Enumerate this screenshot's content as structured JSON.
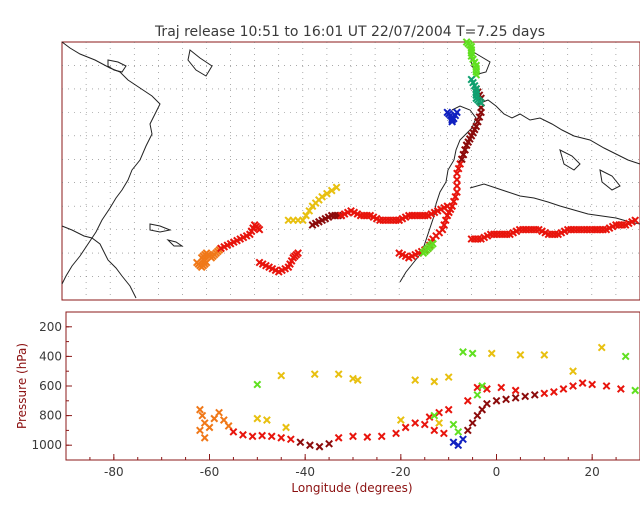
{
  "title": "Traj release 10:51 to 16:01 UT 22/07/2004     T=7.25 days",
  "chart_data": {
    "type": "scatter",
    "title": "Traj release 10:51 to 16:01 UT 22/07/2004     T=7.25 days",
    "map_panel": {
      "xlim": [
        -90,
        30
      ],
      "ylim": [
        15,
        70
      ],
      "grid": true,
      "coastlines": true
    },
    "profile_panel": {
      "xlabel": "Longitude  (degrees)",
      "ylabel": "Pressure  (hPa)",
      "xlim": [
        -90,
        30
      ],
      "ylim": [
        1100,
        100
      ],
      "xticks": [
        "-80",
        "-60",
        "-40",
        "-20",
        "0",
        "20"
      ],
      "yticks": [
        "200",
        "400",
        "600",
        "800",
        "1000"
      ],
      "grid": false
    },
    "series_colors": {
      "low_level_red": "#e8140c",
      "orange": "#f07818",
      "dark_red": "#8b0b0b",
      "yellow": "#e8c010",
      "green": "#60e020",
      "teal": "#10a070",
      "blue": "#1020c0"
    },
    "marker": "x",
    "profile_points": [
      {
        "lon": -62,
        "p": 760,
        "c": "orange"
      },
      {
        "lon": -61.5,
        "p": 800,
        "c": "orange"
      },
      {
        "lon": -61,
        "p": 850,
        "c": "orange"
      },
      {
        "lon": -62,
        "p": 900,
        "c": "orange"
      },
      {
        "lon": -61,
        "p": 950,
        "c": "orange"
      },
      {
        "lon": -60,
        "p": 880,
        "c": "orange"
      },
      {
        "lon": -59,
        "p": 820,
        "c": "orange"
      },
      {
        "lon": -58,
        "p": 780,
        "c": "orange"
      },
      {
        "lon": -57,
        "p": 830,
        "c": "orange"
      },
      {
        "lon": -56,
        "p": 870,
        "c": "orange"
      },
      {
        "lon": -55,
        "p": 910,
        "c": "low_level_red"
      },
      {
        "lon": -53,
        "p": 930,
        "c": "low_level_red"
      },
      {
        "lon": -51,
        "p": 940,
        "c": "low_level_red"
      },
      {
        "lon": -49,
        "p": 935,
        "c": "low_level_red"
      },
      {
        "lon": -47,
        "p": 940,
        "c": "low_level_red"
      },
      {
        "lon": -45,
        "p": 950,
        "c": "low_level_red"
      },
      {
        "lon": -43,
        "p": 960,
        "c": "low_level_red"
      },
      {
        "lon": -41,
        "p": 980,
        "c": "dark_red"
      },
      {
        "lon": -39,
        "p": 1000,
        "c": "dark_red"
      },
      {
        "lon": -37,
        "p": 1010,
        "c": "dark_red"
      },
      {
        "lon": -35,
        "p": 990,
        "c": "dark_red"
      },
      {
        "lon": -33,
        "p": 950,
        "c": "low_level_red"
      },
      {
        "lon": -30,
        "p": 940,
        "c": "low_level_red"
      },
      {
        "lon": -27,
        "p": 945,
        "c": "low_level_red"
      },
      {
        "lon": -24,
        "p": 940,
        "c": "low_level_red"
      },
      {
        "lon": -21,
        "p": 920,
        "c": "low_level_red"
      },
      {
        "lon": -19,
        "p": 880,
        "c": "low_level_red"
      },
      {
        "lon": -17,
        "p": 850,
        "c": "low_level_red"
      },
      {
        "lon": -15,
        "p": 860,
        "c": "low_level_red"
      },
      {
        "lon": -13,
        "p": 900,
        "c": "low_level_red"
      },
      {
        "lon": -11,
        "p": 920,
        "c": "low_level_red"
      },
      {
        "lon": -9,
        "p": 980,
        "c": "blue"
      },
      {
        "lon": -8,
        "p": 1000,
        "c": "blue"
      },
      {
        "lon": -7,
        "p": 960,
        "c": "blue"
      },
      {
        "lon": -6,
        "p": 900,
        "c": "dark_red"
      },
      {
        "lon": -5,
        "p": 850,
        "c": "dark_red"
      },
      {
        "lon": -4,
        "p": 800,
        "c": "dark_red"
      },
      {
        "lon": -3,
        "p": 760,
        "c": "dark_red"
      },
      {
        "lon": -2,
        "p": 720,
        "c": "dark_red"
      },
      {
        "lon": 0,
        "p": 700,
        "c": "dark_red"
      },
      {
        "lon": 2,
        "p": 690,
        "c": "dark_red"
      },
      {
        "lon": 4,
        "p": 680,
        "c": "dark_red"
      },
      {
        "lon": 6,
        "p": 670,
        "c": "dark_red"
      },
      {
        "lon": 8,
        "p": 660,
        "c": "dark_red"
      },
      {
        "lon": 10,
        "p": 650,
        "c": "low_level_red"
      },
      {
        "lon": 12,
        "p": 640,
        "c": "low_level_red"
      },
      {
        "lon": 14,
        "p": 620,
        "c": "low_level_red"
      },
      {
        "lon": 16,
        "p": 600,
        "c": "low_level_red"
      },
      {
        "lon": 18,
        "p": 580,
        "c": "low_level_red"
      },
      {
        "lon": 20,
        "p": 590,
        "c": "low_level_red"
      },
      {
        "lon": 23,
        "p": 600,
        "c": "low_level_red"
      },
      {
        "lon": 26,
        "p": 620,
        "c": "low_level_red"
      },
      {
        "lon": -4,
        "p": 610,
        "c": "low_level_red"
      },
      {
        "lon": -2,
        "p": 620,
        "c": "low_level_red"
      },
      {
        "lon": 1,
        "p": 610,
        "c": "low_level_red"
      },
      {
        "lon": 4,
        "p": 630,
        "c": "low_level_red"
      },
      {
        "lon": -6,
        "p": 700,
        "c": "low_level_red"
      },
      {
        "lon": -10,
        "p": 760,
        "c": "low_level_red"
      },
      {
        "lon": -12,
        "p": 780,
        "c": "low_level_red"
      },
      {
        "lon": -14,
        "p": 810,
        "c": "low_level_red"
      },
      {
        "lon": -50,
        "p": 820,
        "c": "yellow"
      },
      {
        "lon": -48,
        "p": 830,
        "c": "yellow"
      },
      {
        "lon": -44,
        "p": 880,
        "c": "yellow"
      },
      {
        "lon": -50,
        "p": 590,
        "c": "green"
      },
      {
        "lon": -45,
        "p": 530,
        "c": "yellow"
      },
      {
        "lon": -38,
        "p": 520,
        "c": "yellow"
      },
      {
        "lon": -33,
        "p": 520,
        "c": "yellow"
      },
      {
        "lon": -30,
        "p": 550,
        "c": "yellow"
      },
      {
        "lon": -29,
        "p": 560,
        "c": "yellow"
      },
      {
        "lon": -17,
        "p": 560,
        "c": "yellow"
      },
      {
        "lon": -13,
        "p": 570,
        "c": "yellow"
      },
      {
        "lon": -10,
        "p": 540,
        "c": "yellow"
      },
      {
        "lon": -7,
        "p": 370,
        "c": "green"
      },
      {
        "lon": -5,
        "p": 380,
        "c": "green"
      },
      {
        "lon": -1,
        "p": 380,
        "c": "yellow"
      },
      {
        "lon": 5,
        "p": 390,
        "c": "yellow"
      },
      {
        "lon": 10,
        "p": 390,
        "c": "yellow"
      },
      {
        "lon": 16,
        "p": 500,
        "c": "yellow"
      },
      {
        "lon": 22,
        "p": 340,
        "c": "yellow"
      },
      {
        "lon": 27,
        "p": 400,
        "c": "green"
      },
      {
        "lon": -13,
        "p": 800,
        "c": "green"
      },
      {
        "lon": -9,
        "p": 860,
        "c": "green"
      },
      {
        "lon": -8,
        "p": 910,
        "c": "green"
      },
      {
        "lon": -4,
        "p": 660,
        "c": "green"
      },
      {
        "lon": -3,
        "p": 600,
        "c": "green"
      },
      {
        "lon": -12,
        "p": 850,
        "c": "yellow"
      },
      {
        "lon": -20,
        "p": 830,
        "c": "yellow"
      },
      {
        "lon": 29,
        "p": 630,
        "c": "green"
      }
    ],
    "map_tracks": [
      {
        "c": "orange",
        "pts": [
          [
            -62,
            23
          ],
          [
            -61,
            22
          ],
          [
            -60,
            23
          ],
          [
            -61,
            24
          ],
          [
            -60,
            25
          ],
          [
            -59,
            24
          ],
          [
            -58,
            25
          ],
          [
            -57,
            26
          ]
        ]
      },
      {
        "c": "low_level_red",
        "pts": [
          [
            -57,
            26
          ],
          [
            -55,
            27
          ],
          [
            -53,
            28
          ],
          [
            -51,
            29
          ],
          [
            -50,
            31
          ],
          [
            -49,
            30
          ]
        ]
      },
      {
        "c": "low_level_red",
        "pts": [
          [
            -49,
            23
          ],
          [
            -47,
            22
          ],
          [
            -45,
            21
          ],
          [
            -43,
            22
          ],
          [
            -42,
            24
          ],
          [
            -41,
            25
          ]
        ]
      },
      {
        "c": "dark_red",
        "pts": [
          [
            -38,
            31
          ],
          [
            -36,
            32
          ],
          [
            -34,
            33
          ],
          [
            -32,
            33
          ]
        ]
      },
      {
        "c": "low_level_red",
        "pts": [
          [
            -32,
            33
          ],
          [
            -30,
            34
          ],
          [
            -28,
            33
          ],
          [
            -26,
            33
          ],
          [
            -24,
            32
          ],
          [
            -22,
            32
          ],
          [
            -20,
            32
          ]
        ]
      },
      {
        "c": "low_level_red",
        "pts": [
          [
            -20,
            32
          ],
          [
            -18,
            33
          ],
          [
            -16,
            33
          ],
          [
            -14,
            33
          ],
          [
            -12,
            34
          ],
          [
            -10,
            35
          ]
        ]
      },
      {
        "c": "low_level_red",
        "pts": [
          [
            -20,
            25
          ],
          [
            -18,
            24
          ],
          [
            -16,
            25
          ],
          [
            -14,
            26
          ],
          [
            -13,
            28
          ],
          [
            -11,
            30
          ],
          [
            -10,
            33
          ],
          [
            -9,
            35
          ],
          [
            -8,
            38
          ],
          [
            -8,
            42
          ],
          [
            -7,
            45
          ],
          [
            -6,
            48
          ]
        ]
      },
      {
        "c": "dark_red",
        "pts": [
          [
            -7,
            45
          ],
          [
            -6,
            48
          ],
          [
            -5,
            50
          ],
          [
            -4,
            52
          ],
          [
            -3,
            55
          ],
          [
            -3,
            58
          ],
          [
            -4,
            60
          ]
        ]
      },
      {
        "c": "low_level_red",
        "pts": [
          [
            -5,
            28
          ],
          [
            -3,
            28
          ],
          [
            -1,
            29
          ],
          [
            1,
            29
          ],
          [
            3,
            29
          ],
          [
            5,
            30
          ],
          [
            7,
            30
          ],
          [
            9,
            30
          ],
          [
            11,
            29
          ],
          [
            13,
            29
          ],
          [
            15,
            30
          ],
          [
            17,
            30
          ],
          [
            19,
            30
          ],
          [
            21,
            30
          ]
        ]
      },
      {
        "c": "low_level_red",
        "pts": [
          [
            21,
            30
          ],
          [
            23,
            30
          ],
          [
            25,
            31
          ],
          [
            27,
            31
          ],
          [
            29,
            32
          ]
        ]
      },
      {
        "c": "green",
        "pts": [
          [
            -6,
            70
          ],
          [
            -5,
            69
          ],
          [
            -5,
            67
          ],
          [
            -4,
            65
          ],
          [
            -4,
            63
          ]
        ]
      },
      {
        "c": "teal",
        "pts": [
          [
            -5,
            62
          ],
          [
            -4,
            60
          ],
          [
            -4,
            58
          ],
          [
            -3,
            57
          ]
        ]
      },
      {
        "c": "blue",
        "pts": [
          [
            -10,
            55
          ],
          [
            -9,
            54
          ],
          [
            -9,
            53
          ],
          [
            -8,
            55
          ]
        ]
      },
      {
        "c": "yellow",
        "pts": [
          [
            -43,
            32
          ],
          [
            -40,
            32
          ],
          [
            -38,
            35
          ],
          [
            -36,
            37
          ],
          [
            -33,
            39
          ]
        ]
      },
      {
        "c": "green",
        "pts": [
          [
            -15,
            25
          ],
          [
            -14,
            26
          ],
          [
            -13,
            27
          ]
        ]
      }
    ]
  }
}
